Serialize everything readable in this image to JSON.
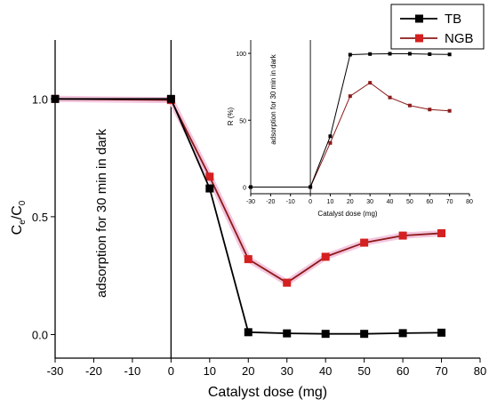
{
  "chart_data": [
    {
      "type": "line",
      "role": "main",
      "x": [
        -30,
        0,
        10,
        20,
        30,
        40,
        50,
        60,
        70
      ],
      "xlim": [
        -30,
        80
      ],
      "ylim": [
        -0.1,
        1.25
      ],
      "xticks": [
        -30,
        -20,
        -10,
        0,
        10,
        20,
        30,
        40,
        50,
        60,
        70,
        80
      ],
      "yticks": [
        0.0,
        0.5,
        1.0
      ],
      "ytick_labels": [
        "0.0",
        "0.5",
        "1.0"
      ],
      "xlabel": "Catalyst dose (mg)",
      "ylabel_main": "C",
      "ylabel_sub1": "e",
      "ylabel_mid": "/C",
      "ylabel_sub2": "0",
      "annotation": "adsorption for 30 min in dark",
      "series": [
        {
          "name": "TB",
          "color": "#000000",
          "values": [
            1.0,
            1.0,
            0.62,
            0.01,
            0.005,
            0.003,
            0.003,
            0.006,
            0.008
          ]
        },
        {
          "name": "NGB",
          "color": "#8b1a1a",
          "marker_color": "#d42020",
          "values": [
            1.0,
            0.995,
            0.67,
            0.32,
            0.22,
            0.33,
            0.39,
            0.42,
            0.43
          ]
        }
      ],
      "legend": "top-right"
    },
    {
      "type": "line",
      "role": "inset",
      "x": [
        -30,
        0,
        10,
        20,
        30,
        40,
        50,
        60,
        70
      ],
      "xlim": [
        -30,
        80
      ],
      "ylim": [
        -5,
        110
      ],
      "xticks": [
        -30,
        -20,
        -10,
        0,
        10,
        20,
        30,
        40,
        50,
        60,
        70,
        80
      ],
      "yticks": [
        0,
        50,
        100
      ],
      "xlabel": "Catalyst dose (mg)",
      "ylabel": "R (%)",
      "annotation": "adsorption for 30 min in dark",
      "series": [
        {
          "name": "TB",
          "color": "#000000",
          "values": [
            0,
            0,
            38,
            99,
            99.5,
            99.7,
            99.7,
            99.4,
            99.2
          ]
        },
        {
          "name": "NGB",
          "color": "#8b1a1a",
          "values": [
            0,
            0,
            33,
            68,
            78,
            67,
            61,
            58,
            57
          ]
        }
      ]
    }
  ]
}
